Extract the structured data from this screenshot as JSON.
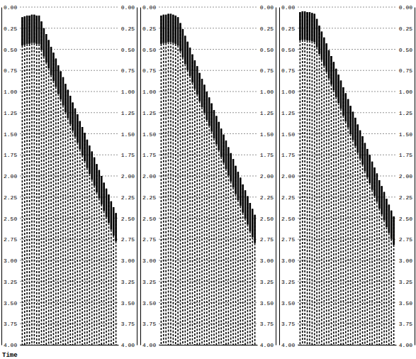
{
  "chart_data": [
    {
      "type": "wiggle",
      "y_label": "Time",
      "grid": true,
      "tick_labels": "y",
      "xlim": [
        -1,
        40
      ],
      "ylim": [
        0,
        4
      ],
      "yticks": [
        {
          "value": 0,
          "label": "0.00"
        },
        {
          "value": 0.25,
          "label": "0.25"
        },
        {
          "value": 0.5,
          "label": "0.50"
        },
        {
          "value": 0.75,
          "label": "0.75"
        },
        {
          "value": 1,
          "label": "1.00"
        },
        {
          "value": 1.25,
          "label": "1.25"
        },
        {
          "value": 1.5,
          "label": "1.50"
        },
        {
          "value": 1.75,
          "label": "1.75"
        },
        {
          "value": 2,
          "label": "2.00"
        },
        {
          "value": 2.25,
          "label": "2.25"
        },
        {
          "value": 2.5,
          "label": "2.50"
        },
        {
          "value": 2.75,
          "label": "2.75"
        },
        {
          "value": 3,
          "label": "3.00"
        },
        {
          "value": 3.25,
          "label": "3.25"
        },
        {
          "value": 3.5,
          "label": "3.50"
        },
        {
          "value": 3.75,
          "label": "3.75"
        },
        {
          "value": 4,
          "label": "4.00"
        }
      ],
      "x": [
        0,
        1,
        2,
        3,
        4,
        5,
        6,
        7,
        8,
        9,
        10,
        11,
        12,
        13,
        14,
        15,
        16,
        17,
        18,
        19,
        20,
        21,
        22,
        23,
        24,
        25,
        26,
        27,
        28,
        29,
        30,
        31,
        32,
        33,
        34,
        35,
        36,
        37,
        38,
        39
      ],
      "values": [
        0.12,
        0.11,
        0.1,
        0.1,
        0.09,
        0.09,
        0.1,
        0.1,
        0.17,
        0.25,
        0.32,
        0.39,
        0.47,
        0.54,
        0.61,
        0.69,
        0.76,
        0.83,
        0.91,
        0.98,
        1.05,
        1.13,
        1.2,
        1.27,
        1.35,
        1.42,
        1.49,
        1.57,
        1.64,
        1.71,
        1.78,
        1.86,
        1.93,
        2.0,
        2.08,
        2.15,
        2.22,
        2.3,
        2.37,
        2.44
      ]
    },
    {
      "type": "wiggle",
      "grid": true,
      "tick_labels": "y",
      "xlim": [
        -1,
        40
      ],
      "ylim": [
        0,
        4
      ],
      "yticks": [
        {
          "value": 0,
          "label": "0.00"
        },
        {
          "value": 0.25,
          "label": "0.25"
        },
        {
          "value": 0.5,
          "label": "0.50"
        },
        {
          "value": 0.75,
          "label": "0.75"
        },
        {
          "value": 1,
          "label": "1.00"
        },
        {
          "value": 1.25,
          "label": "1.25"
        },
        {
          "value": 1.5,
          "label": "1.50"
        },
        {
          "value": 1.75,
          "label": "1.75"
        },
        {
          "value": 2,
          "label": "2.00"
        },
        {
          "value": 2.25,
          "label": "2.25"
        },
        {
          "value": 2.5,
          "label": "2.50"
        },
        {
          "value": 2.75,
          "label": "2.75"
        },
        {
          "value": 3,
          "label": "3.00"
        },
        {
          "value": 3.25,
          "label": "3.25"
        },
        {
          "value": 3.5,
          "label": "3.50"
        },
        {
          "value": 3.75,
          "label": "3.75"
        },
        {
          "value": 4,
          "label": "4.00"
        }
      ],
      "x": [
        0,
        1,
        2,
        3,
        4,
        5,
        6,
        7,
        8,
        9,
        10,
        11,
        12,
        13,
        14,
        15,
        16,
        17,
        18,
        19,
        20,
        21,
        22,
        23,
        24,
        25,
        26,
        27,
        28,
        29,
        30,
        31,
        32,
        33,
        34,
        35,
        36,
        37,
        38,
        39
      ],
      "values": [
        0.1,
        0.09,
        0.09,
        0.08,
        0.08,
        0.09,
        0.1,
        0.12,
        0.19,
        0.26,
        0.34,
        0.41,
        0.48,
        0.56,
        0.63,
        0.7,
        0.78,
        0.85,
        0.92,
        1.0,
        1.07,
        1.14,
        1.22,
        1.29,
        1.36,
        1.44,
        1.51,
        1.58,
        1.66,
        1.73,
        1.8,
        1.88,
        1.95,
        2.02,
        2.1,
        2.17,
        2.24,
        2.32,
        2.39,
        2.46
      ]
    },
    {
      "type": "wiggle",
      "grid": true,
      "tick_labels": "y",
      "xlim": [
        -1,
        40
      ],
      "ylim": [
        0,
        4
      ],
      "yticks": [
        {
          "value": 0,
          "label": "0.00"
        },
        {
          "value": 0.25,
          "label": "0.25"
        },
        {
          "value": 0.5,
          "label": "0.50"
        },
        {
          "value": 0.75,
          "label": "0.75"
        },
        {
          "value": 1,
          "label": "1.00"
        },
        {
          "value": 1.25,
          "label": "1.25"
        },
        {
          "value": 1.5,
          "label": "1.50"
        },
        {
          "value": 1.75,
          "label": "1.75"
        },
        {
          "value": 2,
          "label": "2.00"
        },
        {
          "value": 2.25,
          "label": "2.25"
        },
        {
          "value": 2.5,
          "label": "2.50"
        },
        {
          "value": 2.75,
          "label": "2.75"
        },
        {
          "value": 3,
          "label": "3.00"
        },
        {
          "value": 3.25,
          "label": "3.25"
        },
        {
          "value": 3.5,
          "label": "3.50"
        },
        {
          "value": 3.75,
          "label": "3.75"
        },
        {
          "value": 4,
          "label": "4.00"
        }
      ],
      "x": [
        0,
        1,
        2,
        3,
        4,
        5,
        6,
        7,
        8,
        9,
        10,
        11,
        12,
        13,
        14,
        15,
        16,
        17,
        18,
        19,
        20,
        21,
        22,
        23,
        24,
        25,
        26,
        27,
        28,
        29,
        30,
        31,
        32,
        33,
        34,
        35,
        36,
        37,
        38,
        39
      ],
      "values": [
        0.06,
        0.05,
        0.05,
        0.06,
        0.06,
        0.07,
        0.08,
        0.14,
        0.22,
        0.29,
        0.36,
        0.43,
        0.51,
        0.58,
        0.65,
        0.73,
        0.8,
        0.87,
        0.95,
        1.02,
        1.09,
        1.17,
        1.24,
        1.31,
        1.39,
        1.46,
        1.53,
        1.61,
        1.68,
        1.75,
        1.83,
        1.9,
        1.97,
        2.05,
        2.12,
        2.19,
        2.27,
        2.34,
        2.41,
        2.48
      ]
    }
  ]
}
